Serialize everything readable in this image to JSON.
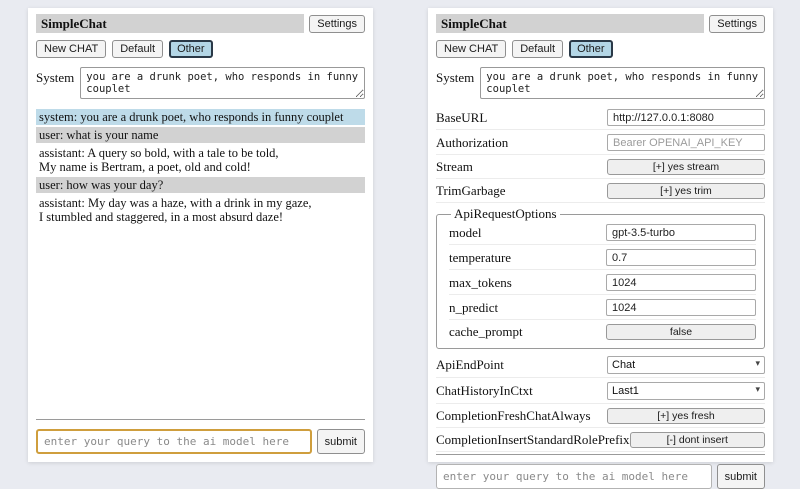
{
  "colors": {
    "page_bg": "#e9ebf1",
    "panel_bg": "#ffffff",
    "titlebar_bg": "#d2d2d2",
    "system_msg_bg": "#bedbe9",
    "user_msg_bg": "#d2d2d2",
    "selected_session_bg": "#b3d6e6",
    "focused_input_border": "#cf9e3d"
  },
  "icons": {
    "chevron_down": "▾"
  },
  "header": {
    "title": "SimpleChat",
    "settings_label": "Settings"
  },
  "session_bar": {
    "new_chat": "New CHAT",
    "default": "Default",
    "other": "Other",
    "selected_session": "Other"
  },
  "system_prompt": {
    "label": "System",
    "value": "you are a drunk poet, who responds in funny couplet"
  },
  "chat": {
    "messages": [
      {
        "role": "system",
        "text": "system: you are a drunk poet, who responds in funny couplet"
      },
      {
        "role": "user",
        "text": "user: what is your name"
      },
      {
        "role": "assistant",
        "text": "assistant: A query so bold, with a tale to be told,\nMy name is Bertram, a poet, old and cold!"
      },
      {
        "role": "user",
        "text": "user: how was your day?"
      },
      {
        "role": "assistant",
        "text": "assistant: My day was a haze, with a drink in my gaze,\nI stumbled and staggered, in a most absurd daze!"
      }
    ]
  },
  "query": {
    "placeholder": "enter your query to the ai model here",
    "submit_label": "submit"
  },
  "settings": {
    "base_url": {
      "label": "BaseURL",
      "value": "http://127.0.0.1:8080"
    },
    "authorization": {
      "label": "Authorization",
      "placeholder": "Bearer OPENAI_API_KEY"
    },
    "stream": {
      "label": "Stream",
      "value": "[+] yes stream"
    },
    "trim_garbage": {
      "label": "TrimGarbage",
      "value": "[+] yes trim"
    },
    "api_request_options": {
      "legend": "ApiRequestOptions",
      "model": {
        "label": "model",
        "value": "gpt-3.5-turbo"
      },
      "temperature": {
        "label": "temperature",
        "value": "0.7"
      },
      "max_tokens": {
        "label": "max_tokens",
        "value": "1024"
      },
      "n_predict": {
        "label": "n_predict",
        "value": "1024"
      },
      "cache_prompt": {
        "label": "cache_prompt",
        "value": "false"
      }
    },
    "api_endpoint": {
      "label": "ApiEndPoint",
      "value": "Chat"
    },
    "chat_history_in_ctxt": {
      "label": "ChatHistoryInCtxt",
      "value": "Last1"
    },
    "completion_fresh_chat_always": {
      "label": "CompletionFreshChatAlways",
      "value": "[+] yes fresh"
    },
    "completion_insert_standard_role_prefix": {
      "label": "CompletionInsertStandardRolePrefix",
      "value": "[-] dont insert"
    }
  }
}
